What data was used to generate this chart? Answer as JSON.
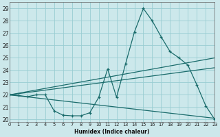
{
  "xlabel": "Humidex (Indice chaleur)",
  "xlim": [
    0,
    23
  ],
  "ylim": [
    19.8,
    29.5
  ],
  "yticks": [
    20,
    21,
    22,
    23,
    24,
    25,
    26,
    27,
    28,
    29
  ],
  "xticks": [
    0,
    1,
    2,
    3,
    4,
    5,
    6,
    7,
    8,
    9,
    10,
    11,
    12,
    13,
    14,
    15,
    16,
    17,
    18,
    19,
    20,
    21,
    22,
    23
  ],
  "bg_color": "#cce8eb",
  "grid_color": "#99cdd2",
  "line_color": "#1a6b6b",
  "main_x": [
    0,
    1,
    2,
    3,
    4,
    5,
    6,
    7,
    8,
    9,
    10,
    11,
    12,
    13,
    14,
    15,
    16,
    17,
    18,
    19,
    20,
    21,
    22,
    23
  ],
  "main_y": [
    22.0,
    21.95,
    21.85,
    22.0,
    22.0,
    20.7,
    20.35,
    20.3,
    20.3,
    20.55,
    21.8,
    24.1,
    21.8,
    24.5,
    27.1,
    29.0,
    28.0,
    26.7,
    25.5,
    25.0,
    24.4,
    22.8,
    21.1,
    20.0
  ],
  "trend1_x": [
    0,
    23
  ],
  "trend1_y": [
    22.0,
    25.0
  ],
  "trend2_x": [
    0,
    23
  ],
  "trend2_y": [
    22.0,
    24.2
  ],
  "trend3_x": [
    0,
    23
  ],
  "trend3_y": [
    22.0,
    20.1
  ]
}
